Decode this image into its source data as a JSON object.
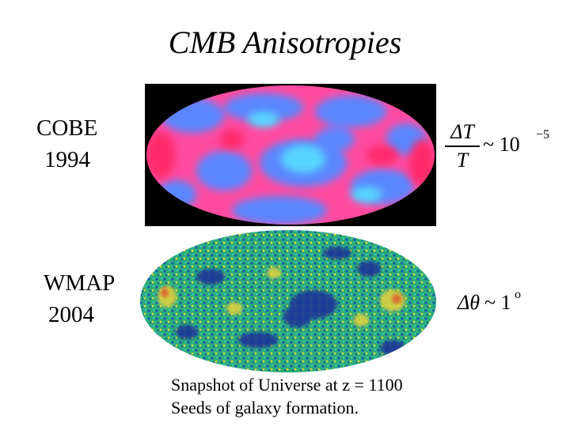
{
  "title": "CMB Anisotropies",
  "cobe": {
    "name": "COBE",
    "year": "1994",
    "formula": {
      "numerator": "ΔT",
      "denominator": "T",
      "relation": "~ 10",
      "exponent": "−5"
    }
  },
  "wmap": {
    "name": "WMAP",
    "year": "2004",
    "formula": {
      "symbol": "Δθ",
      "relation": "~ 1",
      "exponent": "o"
    }
  },
  "caption": {
    "line1": "Snapshot of Universe at z = 1100",
    "line2": "Seeds of galaxy formation."
  },
  "colors": {
    "cobe_background": "#000000",
    "cobe_blue": "#5a78ff",
    "cobe_magenta": "#ff3c96",
    "wmap_blue": "#1a3aa0",
    "wmap_green": "#2ab57a",
    "wmap_yellow": "#e8e23a"
  }
}
